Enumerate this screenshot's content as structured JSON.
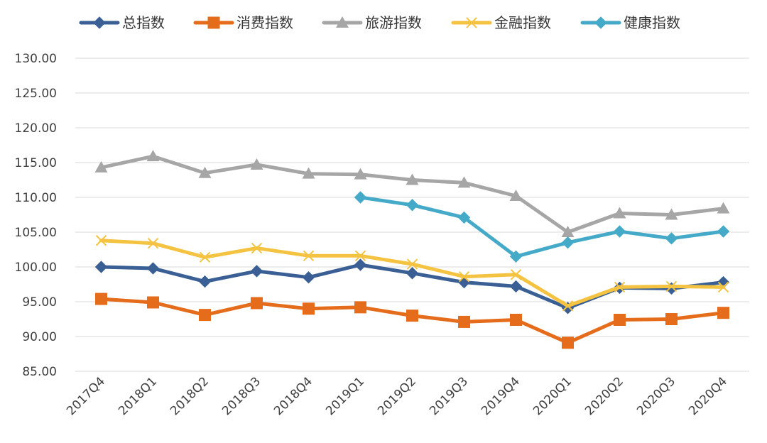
{
  "chart_data": {
    "type": "line",
    "title": "",
    "xlabel": "",
    "ylabel": "",
    "ylim": [
      85,
      130
    ],
    "y_ticks": [
      "85.00",
      "90.00",
      "95.00",
      "100.00",
      "105.00",
      "110.00",
      "115.00",
      "120.00",
      "125.00",
      "130.00"
    ],
    "grid": true,
    "legend_position": "top",
    "categories": [
      "2017Q4",
      "2018Q1",
      "2018Q2",
      "2018Q3",
      "2018Q4",
      "2019Q1",
      "2019Q2",
      "2019Q3",
      "2019Q4",
      "2020Q1",
      "2020Q2",
      "2020Q3",
      "2020Q4"
    ],
    "series": [
      {
        "name": "总指数",
        "color": "#3a5f94",
        "marker": "diamond",
        "values": [
          100.0,
          99.8,
          97.9,
          99.4,
          98.5,
          100.3,
          99.1,
          97.8,
          97.2,
          94.1,
          97.0,
          96.9,
          97.8
        ]
      },
      {
        "name": "消费指数",
        "color": "#e46c1b",
        "marker": "square",
        "values": [
          95.4,
          94.9,
          93.1,
          94.8,
          94.0,
          94.2,
          93.0,
          92.1,
          92.4,
          89.1,
          92.4,
          92.5,
          93.4
        ]
      },
      {
        "name": "旅游指数",
        "color": "#a6a6a6",
        "marker": "triangle",
        "values": [
          114.3,
          115.9,
          113.5,
          114.7,
          113.4,
          113.3,
          112.5,
          112.1,
          110.2,
          105.0,
          107.7,
          107.5,
          108.4
        ]
      },
      {
        "name": "金融指数",
        "color": "#f5c342",
        "marker": "x",
        "values": [
          103.8,
          103.4,
          101.4,
          102.7,
          101.6,
          101.6,
          100.4,
          98.6,
          98.9,
          94.4,
          97.1,
          97.2,
          97.1
        ]
      },
      {
        "name": "健康指数",
        "color": "#45a9c8",
        "marker": "diamond",
        "values": [
          null,
          null,
          null,
          null,
          null,
          110.0,
          108.9,
          107.1,
          101.5,
          103.5,
          105.1,
          104.1,
          105.1
        ]
      }
    ]
  }
}
